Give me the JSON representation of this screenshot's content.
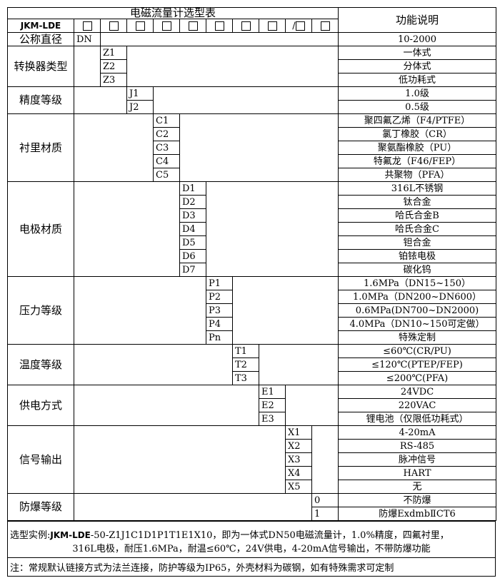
{
  "header": {
    "title": "电磁流量计选型表",
    "function_header": "功能说明",
    "model": "JKM-LDE",
    "slots": [
      "□",
      "□",
      "□",
      "□",
      "□",
      "□",
      "□",
      "□",
      "/□",
      "□"
    ]
  },
  "sections": [
    {
      "label": "公称直径",
      "col": 0,
      "codes": [
        "DN"
      ],
      "descs": [
        "10-2000"
      ]
    },
    {
      "label": "转换器类型",
      "col": 1,
      "codes": [
        "Z1",
        "Z2",
        "Z3"
      ],
      "descs": [
        "一体式",
        "分体式",
        "低功耗式"
      ]
    },
    {
      "label": "精度等级",
      "col": 2,
      "codes": [
        "J1",
        "J2"
      ],
      "descs": [
        "1.0级",
        "0.5级"
      ]
    },
    {
      "label": "衬里材质",
      "col": 3,
      "codes": [
        "C1",
        "C2",
        "C3",
        "C4",
        "C5"
      ],
      "descs": [
        "聚四氟乙烯（F4/PTFE）",
        "氯丁橡胶（CR）",
        "聚氨酯橡胶（PU）",
        "特氟龙（F46/FEP）",
        "共聚物（PFA）"
      ]
    },
    {
      "label": "电极材质",
      "col": 4,
      "codes": [
        "D1",
        "D2",
        "D3",
        "D4",
        "D5",
        "D6",
        "D7"
      ],
      "descs": [
        "316L不锈钢",
        "钛合金",
        "哈氏合金B",
        "哈氏合金C",
        "钽合金",
        "铂铱电极",
        "碳化钨"
      ]
    },
    {
      "label": "压力等级",
      "col": 5,
      "codes": [
        "P1",
        "P2",
        "P3",
        "P4",
        "Pn"
      ],
      "descs": [
        "1.6MPa（DN15~150）",
        "1.0MPa（DN200~DN600）",
        "0.6MPa(DN700~DN2000)",
        "4.0MPa（DN10~150可定做）",
        "特殊定制"
      ]
    },
    {
      "label": "温度等级",
      "col": 6,
      "codes": [
        "T1",
        "T2",
        "T3"
      ],
      "descs": [
        "≤60℃(CR/PU)",
        "≤120℃(PTEP/FEP)",
        "≤200℃(PFA)"
      ]
    },
    {
      "label": "供电方式",
      "col": 7,
      "codes": [
        "E1",
        "E2",
        "E3"
      ],
      "descs": [
        "24VDC",
        "220VAC",
        "锂电池（仅限低功耗式）"
      ]
    },
    {
      "label": "信号输出",
      "col": 8,
      "codes": [
        "X1",
        "X2",
        "X3",
        "X4",
        "X5"
      ],
      "descs": [
        "4-20mA",
        "RS-485",
        "脉冲信号",
        "HART",
        "无"
      ]
    },
    {
      "label": "防爆等级",
      "col": 9,
      "codes": [
        "0",
        "1"
      ],
      "descs": [
        "不防爆",
        "防爆ExdmbⅡCT6"
      ]
    }
  ],
  "notes": {
    "example_prefix": "选型实例:",
    "example_model": "JKM-LDE",
    "example_line1": "-50-Z1J1C1D1P1T1E1X10，即为一体式DN50电磁流量计，1.0%精度，四氟衬里，",
    "example_line2": "316L电极，耐压1.6MPa，耐温≤60℃，24V供电，4-20mA信号输出，不带防爆功能",
    "note": "注：常规默认链接方式为法兰连接，防护等级为IP65，外壳材料为碳钢，如有特殊需求可定制"
  }
}
